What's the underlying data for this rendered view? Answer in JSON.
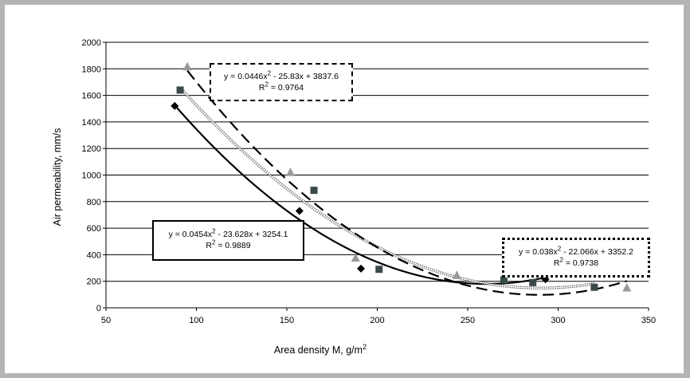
{
  "chart_data": {
    "type": "scatter",
    "title": "",
    "xlabel": "Area density M, g/m",
    "xlabel_sup": "2",
    "ylabel": "Air permeability, mm/s",
    "xlim": [
      50,
      350
    ],
    "ylim": [
      0,
      2000
    ],
    "xticks": [
      "50",
      "100",
      "150",
      "200",
      "250",
      "300",
      "350"
    ],
    "yticks": [
      "0",
      "200",
      "400",
      "600",
      "800",
      "1000",
      "1200",
      "1400",
      "1600",
      "1800",
      "2000"
    ],
    "grid": "horizontal",
    "series": [
      {
        "marker": "diamond",
        "color": "#000000",
        "x": [
          88,
          157,
          191,
          293
        ],
        "y": [
          1520,
          730,
          295,
          215
        ],
        "trend": {
          "style": "solid",
          "coeffs": [
            0.0454,
            -23.628,
            3254.1
          ],
          "equation_parts": [
            "y = 0.0454x",
            "2",
            " - 23.628x + 3254.1"
          ],
          "r2_parts": [
            "R",
            "2",
            " = 0.9889"
          ]
        }
      },
      {
        "marker": "square",
        "color": "#3a4a4a",
        "x": [
          91,
          165,
          201,
          270,
          286,
          320
        ],
        "y": [
          1640,
          885,
          290,
          210,
          190,
          155
        ],
        "trend": {
          "style": "dotted-double",
          "coeffs": [
            0.038,
            -22.066,
            3352.2
          ],
          "equation_parts": [
            "y = 0.038x",
            "2",
            " - 22.066x + 3352.2"
          ],
          "r2_parts": [
            "R",
            "2",
            " = 0.9738"
          ]
        }
      },
      {
        "marker": "triangle",
        "color": "#999999",
        "x": [
          95,
          152,
          188,
          244,
          338
        ],
        "y": [
          1815,
          1020,
          375,
          245,
          150
        ],
        "trend": {
          "style": "dashed",
          "coeffs": [
            0.0446,
            -25.83,
            3837.6
          ],
          "equation_parts": [
            "y = 0.0446x",
            "2",
            " - 25.83x + 3837.6"
          ],
          "r2_parts": [
            "R",
            "2",
            " = 0.9764"
          ]
        }
      }
    ]
  }
}
